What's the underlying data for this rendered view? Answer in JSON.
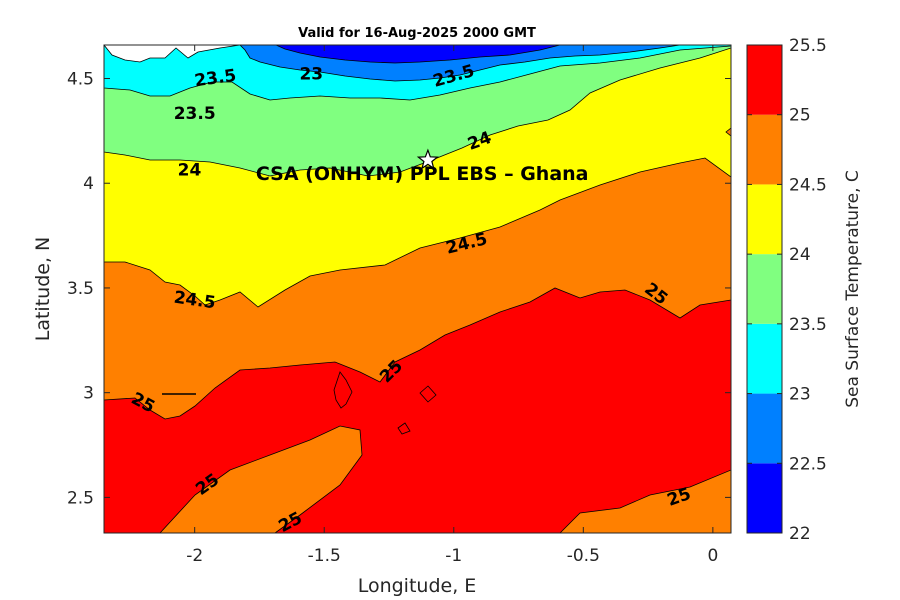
{
  "chart_data": {
    "type": "contour",
    "title": "Valid for 16-Aug-2025 2000 GMT",
    "xlabel": "Longitude, E",
    "ylabel": "Latitude, N",
    "colorbar_label": "Sea Surface Temperature, C",
    "xlim": [
      -2.35,
      0.07
    ],
    "ylim": [
      2.33,
      4.66
    ],
    "xticks": [
      -2,
      -1.5,
      -1,
      -0.5,
      0
    ],
    "xtick_labels": [
      "-2",
      "-1.5",
      "-1",
      "-0.5",
      "0"
    ],
    "yticks": [
      2.5,
      3,
      3.5,
      4,
      4.5
    ],
    "ytick_labels": [
      "2.5",
      "3",
      "3.5",
      "4",
      "4.5"
    ],
    "levels": [
      22,
      22.5,
      23,
      23.5,
      24,
      24.5,
      25,
      25.5
    ],
    "level_labels": [
      "22",
      "22.5",
      "23",
      "23.5",
      "24",
      "24.5",
      "25",
      "25.5"
    ],
    "level_colors": [
      "#0000ff",
      "#0080ff",
      "#00ffff",
      "#80ff80",
      "#ffff00",
      "#ff8000",
      "#ff0000"
    ],
    "contour_labels": [
      {
        "text": "23.5",
        "lon": -1.92,
        "lat": 4.5,
        "angle": -8
      },
      {
        "text": "23",
        "lon": -1.55,
        "lat": 4.52,
        "angle": 0
      },
      {
        "text": "23.5",
        "lon": -1.0,
        "lat": 4.51,
        "angle": -16
      },
      {
        "text": "23.5",
        "lon": -2.0,
        "lat": 4.33,
        "angle": 0
      },
      {
        "text": "24",
        "lon": -0.9,
        "lat": 4.2,
        "angle": -20
      },
      {
        "text": "24",
        "lon": -2.02,
        "lat": 4.06,
        "angle": 0
      },
      {
        "text": "24.5",
        "lon": -0.95,
        "lat": 3.71,
        "angle": -14
      },
      {
        "text": "24.5",
        "lon": -2.0,
        "lat": 3.44,
        "angle": 8
      },
      {
        "text": "25",
        "lon": -0.22,
        "lat": 3.47,
        "angle": 38
      },
      {
        "text": "25",
        "lon": -1.24,
        "lat": 3.1,
        "angle": -45
      },
      {
        "text": "25",
        "lon": -2.2,
        "lat": 2.95,
        "angle": 28
      },
      {
        "text": "25",
        "lon": -1.95,
        "lat": 2.56,
        "angle": -35
      },
      {
        "text": "25",
        "lon": -1.63,
        "lat": 2.38,
        "angle": -28
      },
      {
        "text": "25",
        "lon": -0.13,
        "lat": 2.5,
        "angle": -20
      }
    ],
    "site": {
      "label": "CSA (ONHYM) PPL EBS  – Ghana",
      "lon": -1.1,
      "lat": 4.11
    }
  }
}
